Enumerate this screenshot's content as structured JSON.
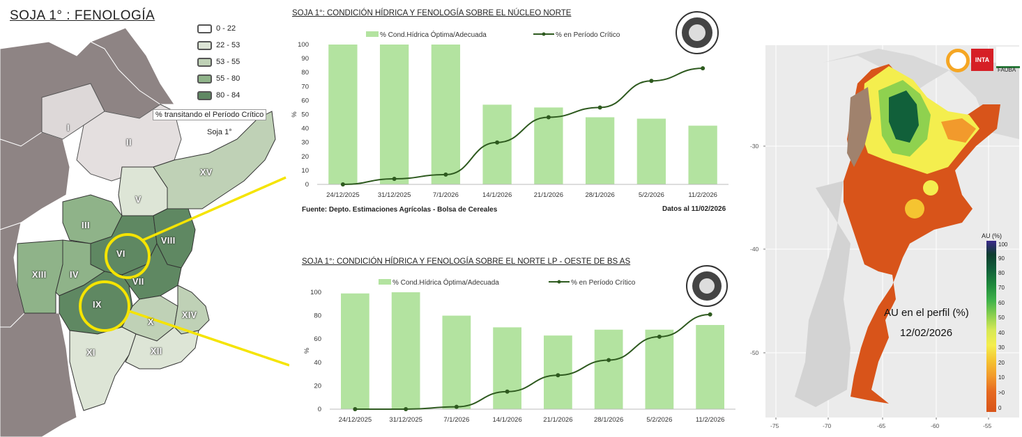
{
  "map": {
    "title": "SOJA 1° : FENOLOGÍA",
    "legend_items": [
      "0 - 22",
      "22 - 53",
      "53 - 55",
      "55 - 80",
      "80 - 84"
    ],
    "legend_colors": [
      "#ffffff",
      "#dde5d6",
      "#bfd1b6",
      "#8fb389",
      "#5f8862"
    ],
    "legend_caption": "% transitando el Período Crítico",
    "legend_sub": "Soja 1°",
    "regions": [
      "I",
      "II",
      "III",
      "IV",
      "V",
      "VI",
      "VII",
      "VIII",
      "IX",
      "X",
      "XI",
      "XII",
      "XIII",
      "XIV",
      "XV"
    ],
    "highlight_color": "#f5e400"
  },
  "charts": {
    "top": {
      "title": "SOJA 1°: CONDICIÓN HÍDRICA Y FENOLOGÍA SOBRE EL NÚCLEO NORTE",
      "source": "Fuente: Depto. Estimaciones Agrícolas - Bolsa de Cereales",
      "date_note": "Datos al 11/02/2026"
    },
    "bottom": {
      "title": "SOJA 1°: CONDICIÓN HÍDRICA Y FENOLOGÍA SOBRE EL NORTE LP - OESTE DE BS AS"
    }
  },
  "chart_data": [
    {
      "type": "bar",
      "title": "SOJA 1°: CONDICIÓN HÍDRICA Y FENOLOGÍA SOBRE EL NÚCLEO NORTE",
      "categories": [
        "24/12/2025",
        "31/12/2025",
        "7/1/2026",
        "14/1/2026",
        "21/1/2026",
        "28/1/2026",
        "5/2/2026",
        "11/2/2026"
      ],
      "ylabel": "%",
      "ylim": [
        0,
        100
      ],
      "yticks": [
        0,
        10,
        20,
        30,
        40,
        50,
        60,
        70,
        80,
        90,
        100
      ],
      "series": [
        {
          "name": "% Cond.Hídrica Óptima/Adecuada",
          "type": "bar",
          "color": "#b3e3a0",
          "values": [
            100,
            100,
            100,
            57,
            55,
            48,
            47,
            42
          ]
        },
        {
          "name": "% en Período Crítico",
          "type": "line",
          "color": "#2e5a1f",
          "values": [
            0,
            4,
            7,
            30,
            48,
            55,
            74,
            83
          ]
        }
      ],
      "legend": "top"
    },
    {
      "type": "bar",
      "title": "SOJA 1°: CONDICIÓN HÍDRICA Y FENOLOGÍA SOBRE EL NORTE LP - OESTE DE BS AS",
      "categories": [
        "24/12/2025",
        "31/12/2025",
        "7/1/2026",
        "14/1/2026",
        "21/1/2026",
        "28/1/2026",
        "5/2/2026",
        "11/2/2026"
      ],
      "ylabel": "%",
      "ylim": [
        0,
        100
      ],
      "yticks": [
        0,
        20,
        40,
        60,
        80,
        100
      ],
      "series": [
        {
          "name": "% Cond.Hídrica Óptima/Adecuada",
          "type": "bar",
          "color": "#b3e3a0",
          "values": [
            99,
            100,
            80,
            70,
            63,
            68,
            68,
            72
          ]
        },
        {
          "name": "% en Período Crítico",
          "type": "line",
          "color": "#2e5a1f",
          "values": [
            0,
            0,
            2,
            15,
            29,
            42,
            62,
            81
          ]
        }
      ],
      "legend": "top"
    }
  ],
  "au_map": {
    "label": "AU en el perfil (%)",
    "date": "12/02/2026",
    "colorbar_title": "AU (%)",
    "colorbar_ticks": [
      "100",
      "90",
      "80",
      "70",
      "60",
      "50",
      "40",
      "30",
      "20",
      "10",
      ">0",
      "0"
    ],
    "colorbar_colors": [
      "#3c2a8c",
      "#0d3d2e",
      "#11603a",
      "#1f8a3c",
      "#40b24a",
      "#8fd14f",
      "#d5e855",
      "#f4ee4e",
      "#f5c431",
      "#f29a2c",
      "#e66a21",
      "#d8541a"
    ],
    "lat_ticks": [
      "-30",
      "-40",
      "-50"
    ],
    "lon_ticks": [
      "-75",
      "-70",
      "-65",
      "-60",
      "-55"
    ],
    "logos": [
      "CONICET-icon",
      "INTA",
      "FAUBA"
    ]
  }
}
